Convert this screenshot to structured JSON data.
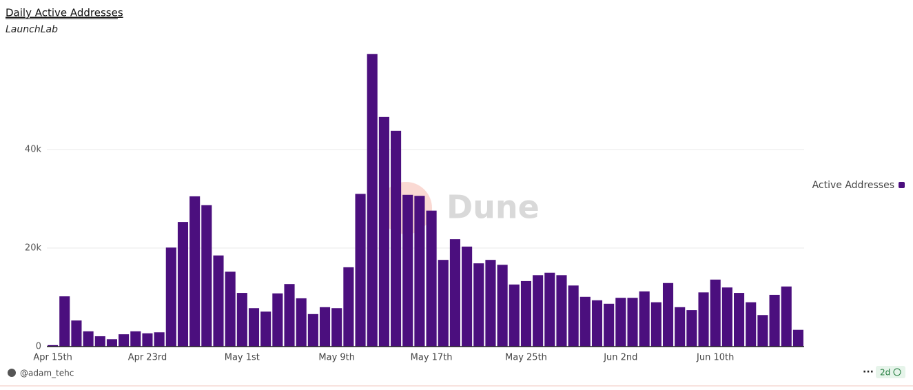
{
  "chart_data": {
    "type": "bar",
    "title": "Daily Active Addresses",
    "subtitle": "LaunchLab",
    "categories": [
      "Apr 15th",
      null,
      null,
      null,
      null,
      null,
      null,
      null,
      "Apr 23rd",
      null,
      null,
      null,
      null,
      null,
      null,
      null,
      "May 1st",
      null,
      null,
      null,
      null,
      null,
      null,
      null,
      "May 9th",
      null,
      null,
      null,
      null,
      null,
      null,
      null,
      "May 17th",
      null,
      null,
      null,
      null,
      null,
      null,
      null,
      "May 25th",
      null,
      null,
      null,
      null,
      null,
      null,
      null,
      "Jun 2nd",
      null,
      null,
      null,
      null,
      null,
      null,
      null,
      "Jun 10th",
      null,
      null,
      null,
      null,
      null,
      null,
      null
    ],
    "series": [
      {
        "name": "Active Addresses",
        "color": "#4b0f7e",
        "values": [
          300,
          10200,
          5300,
          3100,
          2100,
          1500,
          2500,
          3100,
          2700,
          2900,
          20100,
          25300,
          30500,
          28700,
          18500,
          15200,
          10900,
          7800,
          7100,
          10800,
          12700,
          9800,
          6600,
          8000,
          7800,
          16100,
          31000,
          59400,
          46600,
          43800,
          30800,
          30600,
          27600,
          17600,
          21800,
          20300,
          16900,
          17600,
          16600,
          12600,
          13300,
          14500,
          15000,
          14500,
          12400,
          10100,
          9400,
          8700,
          9900,
          9900,
          11200,
          9000,
          12900,
          8000,
          7400,
          11000,
          13600,
          12000,
          10900,
          9000,
          6400,
          10500,
          12200,
          3400
        ]
      }
    ],
    "ylim": [
      0,
      60000
    ],
    "yticks": [
      0,
      {
        "value": 20000,
        "label": "20k"
      },
      {
        "value": 40000,
        "label": "40k"
      }
    ],
    "grid": true,
    "legend": "right",
    "watermark": "Dune",
    "author": "@adam_tehc",
    "refresh": "2d"
  }
}
